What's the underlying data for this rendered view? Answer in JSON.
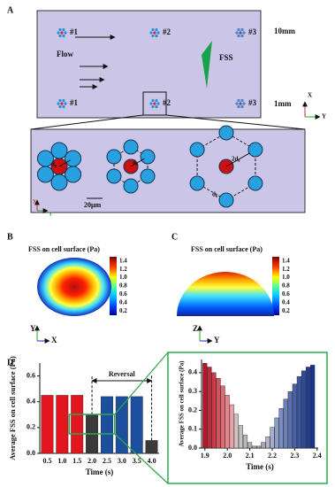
{
  "panel_labels": [
    "A",
    "B",
    "C",
    "D"
  ],
  "diagram": {
    "sites": [
      "#1",
      "#2",
      "#3",
      "#1",
      "#2",
      "#3"
    ],
    "flow": "Flow",
    "fss": "FSS",
    "heights": [
      "10mm",
      "1mm"
    ],
    "axes": [
      "X",
      "Y"
    ],
    "lower_axes": [
      "X",
      "Y"
    ],
    "scale": "20μm",
    "spacing": [
      "d₀",
      "d₀",
      "2d₀",
      "d₀"
    ]
  },
  "panel_b": {
    "title": "FSS on cell surface (Pa)",
    "axes": [
      "Y",
      "X"
    ],
    "colorbar": {
      "lim": [
        0.1,
        1.5
      ],
      "ticks": [
        0.2,
        0.4,
        0.6,
        0.8,
        {
          "value": 1,
          "label": "1.0"
        },
        1.2,
        1.4
      ]
    }
  },
  "panel_c": {
    "title": "FSS on cell surface (Pa)",
    "axes": [
      "Z",
      "Y"
    ],
    "colorbar": {
      "lim": [
        0.1,
        1.5
      ],
      "ticks": [
        0.2,
        0.4,
        0.6,
        0.8,
        {
          "value": 1,
          "label": "1.0"
        },
        1.2,
        1.4
      ]
    }
  },
  "chart_data": [
    {
      "type": "bar",
      "categories": [
        "0.5",
        "1.0",
        "1.5",
        "2.0",
        "2.5",
        "3.0",
        "3.5",
        "4.0"
      ],
      "values": [
        0.45,
        0.45,
        0.45,
        0.3,
        0.44,
        0.44,
        0.44,
        0.1
      ],
      "colors": [
        "#e3151e",
        "#e3151e",
        "#e3151e",
        "#3a3a3a",
        "#1d4f9f",
        "#1d4f9f",
        "#1d4f9f",
        "#3a3a3a"
      ],
      "ylim": [
        0,
        0.7
      ],
      "yticks": [
        {
          "value": 0,
          "label": "0.0"
        },
        0.2,
        0.4,
        0.6
      ],
      "x_label": "Time (s)",
      "y_label": "Average FSS on cell surface (Pa)",
      "annotation": "Reversal"
    },
    {
      "type": "bar",
      "x": [
        1.9,
        1.92,
        1.94,
        1.96,
        1.98,
        2.0,
        2.02,
        2.04,
        2.06,
        2.08,
        2.1,
        2.12,
        2.14,
        2.16,
        2.18,
        2.2,
        2.22,
        2.24,
        2.26,
        2.28,
        2.3,
        2.32,
        2.34,
        2.36,
        2.38
      ],
      "values": [
        0.45,
        0.43,
        0.4,
        0.37,
        0.33,
        0.28,
        0.23,
        0.18,
        0.12,
        0.07,
        0.03,
        0.01,
        0.01,
        0.03,
        0.06,
        0.11,
        0.16,
        0.21,
        0.26,
        0.3,
        0.34,
        0.38,
        0.41,
        0.43,
        0.44
      ],
      "colors": [
        "#b2182b",
        "#c0283a",
        "#cc3a4a",
        "#d6505e",
        "#de6a74",
        "#e5868c",
        "#eba2a6",
        "#d0c4c4",
        "#c0c0c0",
        "#b8b8b8",
        "#b0b0b0",
        "#a8a8a8",
        "#a0a0a0",
        "#a8a8b4",
        "#b0b4c8",
        "#a4aed0",
        "#8e9cc8",
        "#7a8cc0",
        "#6a7eb8",
        "#5a70b0",
        "#4a62a8",
        "#3c56a0",
        "#2e4a98",
        "#223e90",
        "#1a3488"
      ],
      "xlim": [
        1.885,
        2.405
      ],
      "xticks": [
        1.9,
        {
          "value": 2,
          "label": "2.0"
        },
        2.1,
        2.2,
        2.3,
        2.4
      ],
      "ylim": [
        0,
        0.47
      ],
      "yticks": [
        {
          "value": 0,
          "label": "0.0"
        },
        0.1,
        0.2,
        0.3,
        0.4
      ],
      "x_label": "Time (s)",
      "y_label": "Average FSS on cell surface (Pa)"
    }
  ]
}
